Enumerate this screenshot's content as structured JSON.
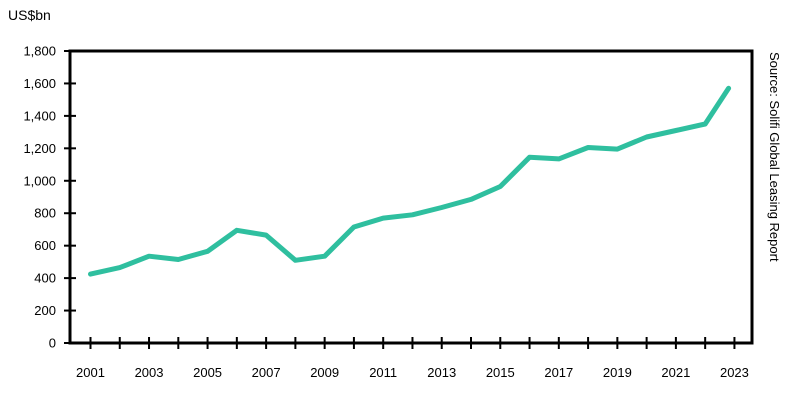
{
  "chart_data": {
    "type": "line",
    "title": "",
    "xlabel": "",
    "ylabel": "US$bn",
    "source": "Source: Solifi Global Leasing Report",
    "ylim": [
      0,
      1800
    ],
    "yticks": [
      0,
      200,
      400,
      600,
      800,
      1000,
      1200,
      1400,
      1600,
      1800
    ],
    "ytick_labels": [
      "0",
      "200",
      "400",
      "600",
      "800",
      "1,000",
      "1,200",
      "1,400",
      "1,600",
      "1,800"
    ],
    "xlim": [
      2000.3,
      2023.6
    ],
    "xtick_labels": [
      "2001",
      "2003",
      "2005",
      "2007",
      "2009",
      "2011",
      "2013",
      "2015",
      "2017",
      "2019",
      "2021",
      "2023"
    ],
    "grid": false,
    "line_color": "#2fbf9f",
    "series": [
      {
        "name": "",
        "x": [
          2001,
          2002,
          2003,
          2004,
          2005,
          2006,
          2007,
          2008,
          2009,
          2010,
          2011,
          2012,
          2013,
          2014,
          2015,
          2016,
          2017,
          2018,
          2019,
          2020,
          2021,
          2022,
          2022.8
        ],
        "values": [
          425,
          465,
          535,
          515,
          565,
          695,
          665,
          510,
          535,
          715,
          770,
          790,
          835,
          885,
          965,
          1145,
          1135,
          1205,
          1195,
          1270,
          1310,
          1350,
          1570
        ]
      }
    ]
  }
}
